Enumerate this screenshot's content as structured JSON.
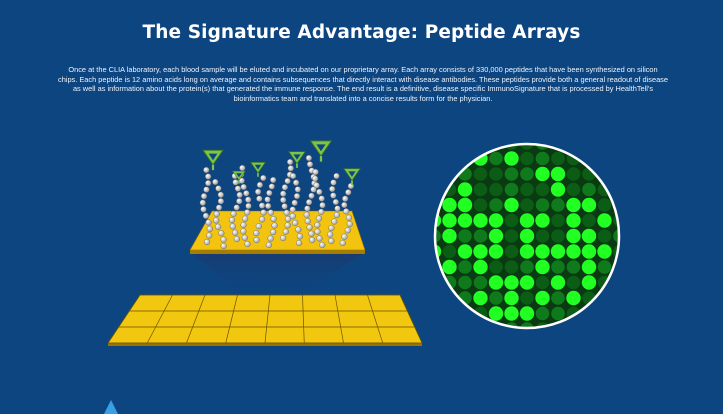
{
  "header": {
    "title": "The Signature Advantage: Peptide Arrays"
  },
  "intro": {
    "paragraph": "Once at the CLIA laboratory, each blood sample will be eluted and incubated on our proprietary array. Each array consists of 330,000 peptides that have been synthesized on silicon chips. Each peptide is 12 amino acids long on average and contains subsequences that directly interact with disease antibodies. These peptides provide both a general readout of disease as well as information about the protein(s) that generated the immune response. The end result is a definitive, disease specific ImmunoSignature that is processed by HealthTell's bioinformatics team and translated into a concise results form for the physician."
  },
  "colors": {
    "background": "#0d4580",
    "chip_yellow": "#f2c40f",
    "grid_yellow": "#f1c70f",
    "antibody_green": "#7cc54a",
    "spot_bright": "#22ff22",
    "spot_dim": "#0b5c15",
    "bead": "#f4f4f4"
  },
  "icons": {
    "antibody": "y-shaped-antibody-icon",
    "peptide": "bead-chain-icon",
    "logo": "triangle-logo-icon"
  }
}
